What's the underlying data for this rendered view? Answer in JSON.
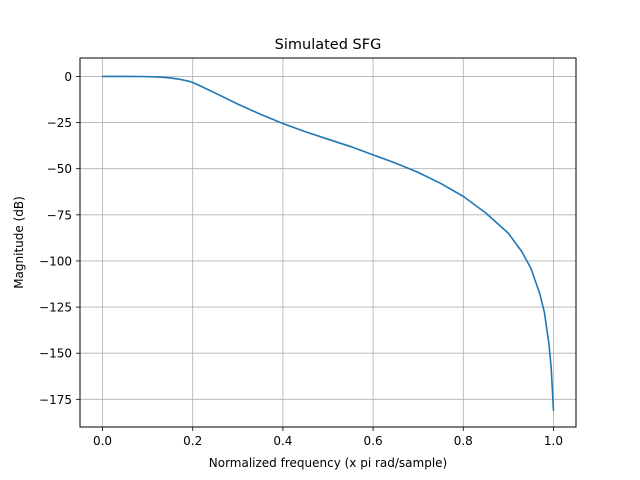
{
  "chart_data": {
    "type": "line",
    "title": "Simulated SFG",
    "xlabel": "Normalized frequency (x pi rad/sample)",
    "ylabel": "Magnitude (dB)",
    "xlim": [
      -0.05,
      1.05
    ],
    "ylim": [
      -190,
      10
    ],
    "xticks": [
      0.0,
      0.2,
      0.4,
      0.6,
      0.8,
      1.0
    ],
    "xtick_labels": [
      "0.0",
      "0.2",
      "0.4",
      "0.6",
      "0.8",
      "1.0"
    ],
    "yticks": [
      0,
      -25,
      -50,
      -75,
      -100,
      -125,
      -150,
      -175
    ],
    "ytick_labels": [
      "0",
      "−25",
      "−50",
      "−75",
      "−100",
      "−125",
      "−150",
      "−175"
    ],
    "grid": true,
    "series": [
      {
        "color": "#1f77b4",
        "x": [
          0.0,
          0.05,
          0.1,
          0.13,
          0.15,
          0.17,
          0.19,
          0.2,
          0.22,
          0.25,
          0.3,
          0.35,
          0.4,
          0.45,
          0.5,
          0.55,
          0.6,
          0.65,
          0.7,
          0.75,
          0.8,
          0.85,
          0.9,
          0.93,
          0.95,
          0.97,
          0.98,
          0.99,
          0.995,
          1.0
        ],
        "y": [
          0,
          0,
          -0.1,
          -0.4,
          -0.8,
          -1.5,
          -2.5,
          -3.3,
          -5.5,
          -9,
          -15,
          -20.5,
          -25.5,
          -30,
          -34,
          -38,
          -42.5,
          -47,
          -52,
          -58,
          -65,
          -74,
          -85,
          -95,
          -104,
          -118,
          -128,
          -145,
          -158,
          -181
        ]
      }
    ]
  }
}
